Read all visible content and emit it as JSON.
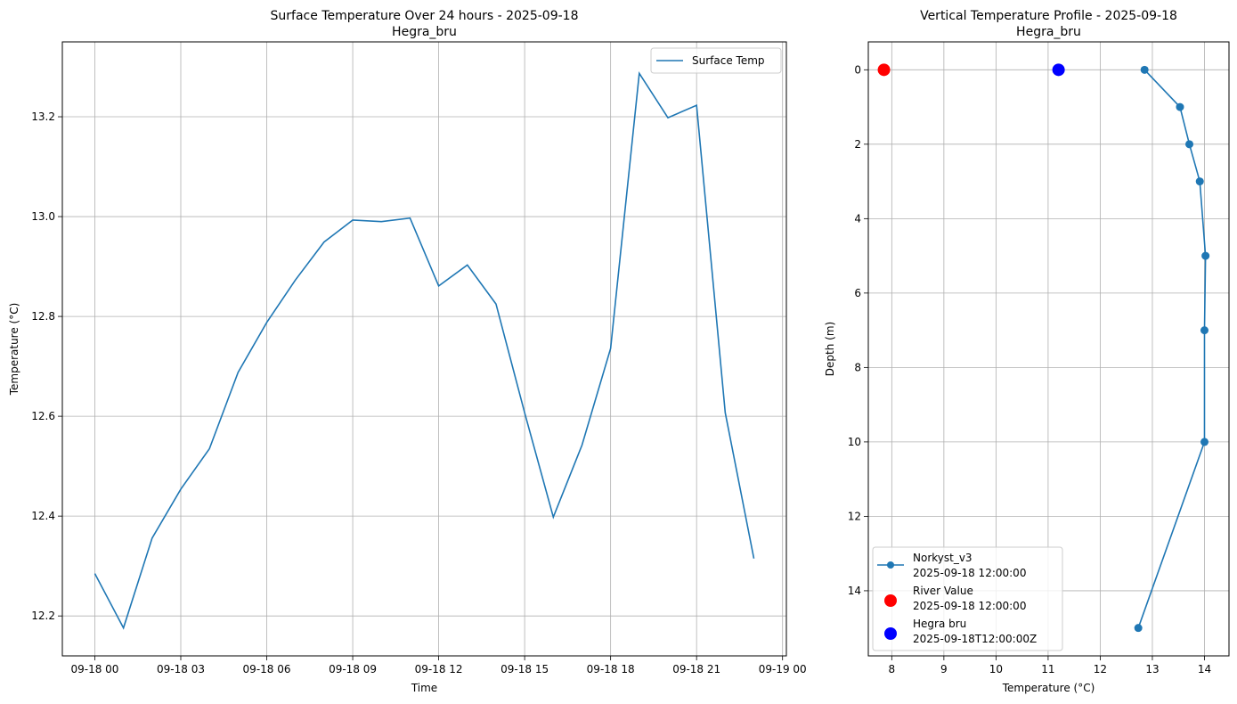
{
  "chart_data": [
    {
      "type": "line",
      "title": "Surface Temperature Over 24 hours - 2025-09-18",
      "subtitle": "Hegra_bru",
      "xlabel": "Time",
      "ylabel": "Temperature (°C)",
      "grid": true,
      "legend_position": "top-right",
      "x_ticks": [
        "09-18 00",
        "09-18 03",
        "09-18 06",
        "09-18 09",
        "09-18 12",
        "09-18 15",
        "09-18 18",
        "09-18 21",
        "09-19 00"
      ],
      "y_ticks": [
        "12.2",
        "12.4",
        "12.6",
        "12.8",
        "13.0",
        "13.2"
      ],
      "xlim": [
        "2025-09-17T22:52",
        "2025-09-19T00:08"
      ],
      "ylim": [
        12.12,
        13.35
      ],
      "series": [
        {
          "name": "Surface Temp",
          "color": "#1f77b4",
          "x": [
            "2025-09-18T00:00",
            "2025-09-18T01:00",
            "2025-09-18T02:00",
            "2025-09-18T03:00",
            "2025-09-18T04:00",
            "2025-09-18T05:00",
            "2025-09-18T06:00",
            "2025-09-18T07:00",
            "2025-09-18T08:00",
            "2025-09-18T09:00",
            "2025-09-18T10:00",
            "2025-09-18T11:00",
            "2025-09-18T12:00",
            "2025-09-18T13:00",
            "2025-09-18T14:00",
            "2025-09-18T15:00",
            "2025-09-18T16:00",
            "2025-09-18T17:00",
            "2025-09-18T18:00",
            "2025-09-18T19:00",
            "2025-09-18T20:00",
            "2025-09-18T21:00",
            "2025-09-18T22:00",
            "2025-09-18T23:00"
          ],
          "y": [
            12.285,
            12.176,
            12.356,
            12.454,
            12.535,
            12.688,
            12.788,
            12.873,
            12.949,
            12.993,
            12.99,
            12.997,
            12.861,
            12.903,
            12.825,
            12.607,
            12.398,
            12.542,
            12.736,
            13.287,
            13.198,
            13.223,
            12.607,
            12.315
          ]
        }
      ]
    },
    {
      "type": "line",
      "title": "Vertical Temperature Profile - 2025-09-18",
      "subtitle": "Hegra_bru",
      "xlabel": "Temperature (°C)",
      "ylabel": "Depth (m)",
      "grid": true,
      "y_inverted": true,
      "legend_position": "lower-left",
      "x_ticks": [
        "8",
        "9",
        "10",
        "11",
        "12",
        "13",
        "14"
      ],
      "y_ticks": [
        "0",
        "2",
        "4",
        "6",
        "8",
        "10",
        "12",
        "14"
      ],
      "xlim": [
        7.55,
        14.47
      ],
      "ylim": [
        15.75,
        -0.75
      ],
      "series": [
        {
          "name": "Norkyst_v3",
          "legend_subtext": "2025-09-18 12:00:00",
          "color": "#1f77b4",
          "marker": "circle",
          "x": [
            12.85,
            13.53,
            13.71,
            13.91,
            14.02,
            14.0,
            14.0,
            12.73
          ],
          "y": [
            0,
            1,
            2,
            3,
            5,
            7,
            10,
            15
          ]
        },
        {
          "name": "River Value",
          "legend_subtext": "2025-09-18 12:00:00",
          "color": "#ff0000",
          "marker": "circle-large",
          "x": [
            7.85
          ],
          "y": [
            0
          ]
        },
        {
          "name": "Hegra bru",
          "legend_subtext": "2025-09-18T12:00:00Z",
          "color": "#0000ff",
          "marker": "circle-large",
          "x": [
            11.2
          ],
          "y": [
            0
          ]
        }
      ]
    }
  ]
}
